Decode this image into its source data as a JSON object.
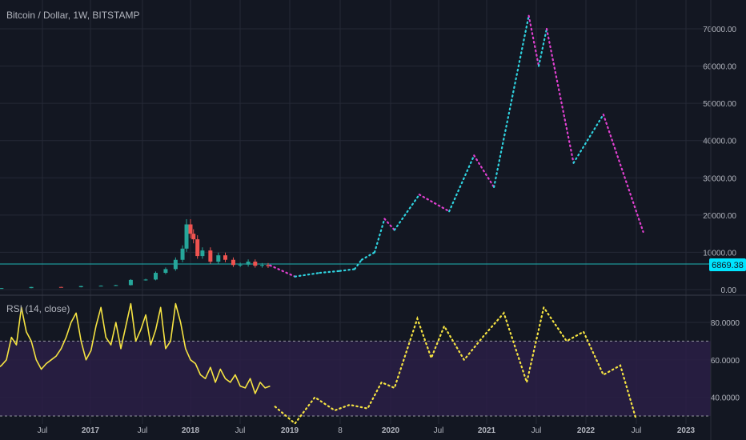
{
  "theme": {
    "background": "#131722",
    "grid": "#242836",
    "text": "#b2b5be",
    "up_color": "#26a69a",
    "down_color": "#ef5350",
    "forecast_up": "#2fd3e0",
    "forecast_down": "#e040d0",
    "rsi_line": "#f5e342",
    "rsi_band": "#2a1f45",
    "price_line": "#1fb4b4"
  },
  "chart_data": [
    {
      "type": "line",
      "title": "Bitcoin / Dollar, 1W, BITSTAMP",
      "xlabel": "",
      "ylabel": "",
      "x_tick_labels": [
        "Jul",
        "2017",
        "Jul",
        "2018",
        "Jul",
        "2019",
        "8",
        "2020",
        "Jul",
        "2021",
        "Jul",
        "2022",
        "Jul",
        "2023"
      ],
      "y_tick_labels": [
        "0.00",
        "10000.00",
        "20000.00",
        "30000.00",
        "40000.00",
        "50000.00",
        "60000.00",
        "70000.00"
      ],
      "ylim": [
        0,
        75000
      ],
      "grid": true,
      "horizontal_line": {
        "value": 6869.38,
        "label": "6869.38"
      },
      "series": [
        {
          "kind": "candlestick_history",
          "x": [
            2016.1,
            2016.4,
            2016.7,
            2016.9,
            2017.1,
            2017.25,
            2017.4,
            2017.55,
            2017.65,
            2017.75,
            2017.85,
            2017.92,
            2017.96,
            2018.0,
            2018.03,
            2018.07,
            2018.12,
            2018.2,
            2018.28,
            2018.35,
            2018.43,
            2018.5,
            2018.58,
            2018.65,
            2018.72,
            2018.78
          ],
          "y": [
            400,
            700,
            650,
            950,
            1050,
            1200,
            2600,
            2700,
            4500,
            5500,
            8000,
            11000,
            17500,
            15000,
            13500,
            9000,
            10500,
            7500,
            9200,
            8000,
            6600,
            6700,
            7500,
            6400,
            6600,
            6300
          ]
        },
        {
          "kind": "forecast",
          "x": [
            2018.8,
            2019.05,
            2019.3,
            2019.5,
            2019.65,
            2019.72,
            2019.85,
            2019.95,
            2020.05,
            2020.3,
            2020.6,
            2020.85,
            2021.05,
            2021.4,
            2021.5,
            2021.58,
            2021.85,
            2022.15,
            2022.55
          ],
          "y": [
            6500,
            3500,
            4500,
            5000,
            5500,
            8000,
            10000,
            19000,
            16000,
            25500,
            21000,
            36000,
            27500,
            73500,
            60000,
            70000,
            34000,
            47000,
            15500
          ]
        }
      ]
    },
    {
      "type": "line",
      "title": "RSI (14, close)",
      "xlabel": "",
      "ylabel": "",
      "y_tick_labels": [
        "40.0000",
        "60.0000",
        "80.0000"
      ],
      "ylim": [
        25,
        95
      ],
      "band": [
        30,
        70
      ],
      "grid": true,
      "series": [
        {
          "kind": "rsi_history",
          "x": [
            2016.0,
            2016.05,
            2016.1,
            2016.15,
            2016.2,
            2016.25,
            2016.3,
            2016.35,
            2016.4,
            2016.45,
            2016.5,
            2016.55,
            2016.6,
            2016.65,
            2016.7,
            2016.75,
            2016.8,
            2016.85,
            2016.9,
            2016.95,
            2017.0,
            2017.05,
            2017.1,
            2017.15,
            2017.2,
            2017.25,
            2017.3,
            2017.35,
            2017.4,
            2017.45,
            2017.5,
            2017.55,
            2017.6,
            2017.65,
            2017.7,
            2017.75,
            2017.8,
            2017.85,
            2017.9,
            2017.95,
            2018.0,
            2018.05,
            2018.1,
            2018.15,
            2018.2,
            2018.25,
            2018.3,
            2018.35,
            2018.4,
            2018.45,
            2018.5,
            2018.55,
            2018.6,
            2018.65,
            2018.7,
            2018.75,
            2018.8
          ],
          "y": [
            62,
            55,
            57,
            60,
            72,
            68,
            88,
            75,
            70,
            60,
            55,
            58,
            60,
            62,
            66,
            72,
            80,
            85,
            70,
            60,
            65,
            78,
            88,
            72,
            68,
            80,
            66,
            78,
            90,
            70,
            76,
            84,
            68,
            76,
            88,
            66,
            70,
            90,
            80,
            66,
            60,
            58,
            52,
            50,
            56,
            48,
            55,
            50,
            48,
            52,
            46,
            45,
            50,
            42,
            48,
            45,
            46
          ]
        },
        {
          "kind": "rsi_forecast",
          "x": [
            2018.85,
            2019.05,
            2019.25,
            2019.45,
            2019.6,
            2019.78,
            2019.92,
            2020.05,
            2020.28,
            2020.42,
            2020.55,
            2020.75,
            2020.95,
            2021.15,
            2021.38,
            2021.55,
            2021.78,
            2021.95,
            2022.15,
            2022.32,
            2022.48
          ],
          "y": [
            35,
            26,
            40,
            33,
            36,
            34,
            48,
            45,
            82,
            61,
            78,
            60,
            73,
            85,
            48,
            88,
            70,
            75,
            52,
            57,
            28
          ]
        }
      ]
    }
  ]
}
